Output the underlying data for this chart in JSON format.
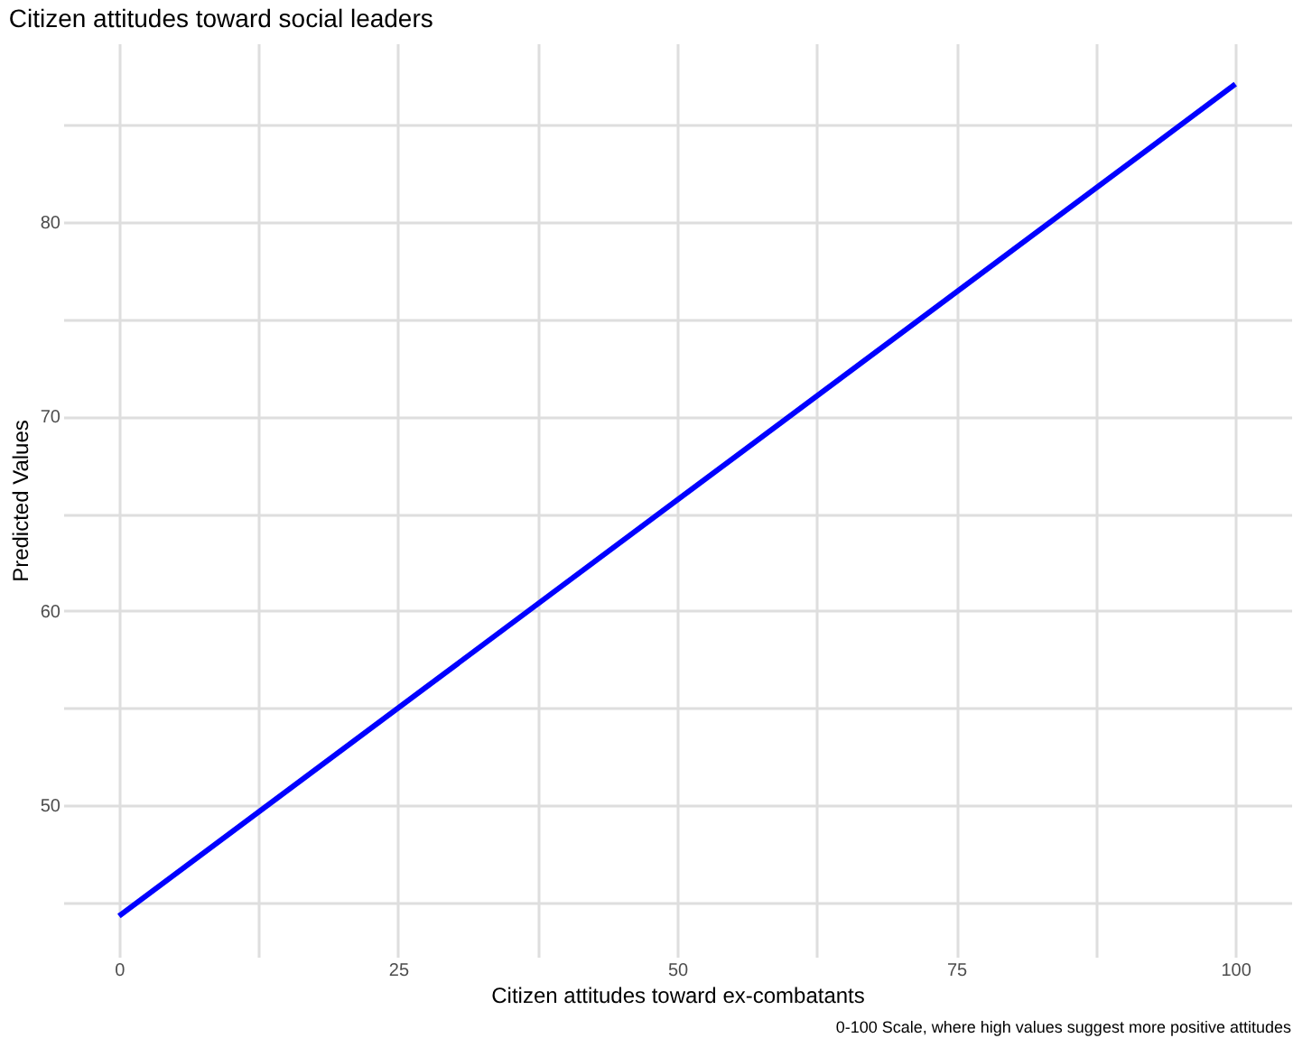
{
  "chart_data": {
    "type": "line",
    "title": "Citizen attitudes toward social leaders",
    "xlabel": "Citizen attitudes toward ex-combatants",
    "ylabel": "Predicted Values",
    "annotations": [
      "0-100 Scale, where high values suggest more positive attitudes"
    ],
    "x": [
      0,
      100
    ],
    "series": [
      {
        "color": "#0000ff",
        "values": [
          44.3,
          87.1
        ]
      }
    ],
    "xlim": [
      -5,
      105
    ],
    "ylim": [
      42.2,
      89.2
    ],
    "xticks": [
      0,
      {
        "value": 12.5,
        "label": null
      },
      25,
      {
        "value": 37.5,
        "label": null
      },
      50,
      {
        "value": 62.5,
        "label": null
      },
      75,
      {
        "value": 87.5,
        "label": null
      },
      100
    ],
    "yticks": [
      {
        "value": 45,
        "label": null
      },
      50,
      {
        "value": 55,
        "label": null
      },
      60,
      {
        "value": 65,
        "label": null
      },
      70,
      {
        "value": 75,
        "label": null
      },
      80,
      {
        "value": 85,
        "label": null
      }
    ],
    "grid": true,
    "line_style": "solid",
    "marker": "none"
  }
}
